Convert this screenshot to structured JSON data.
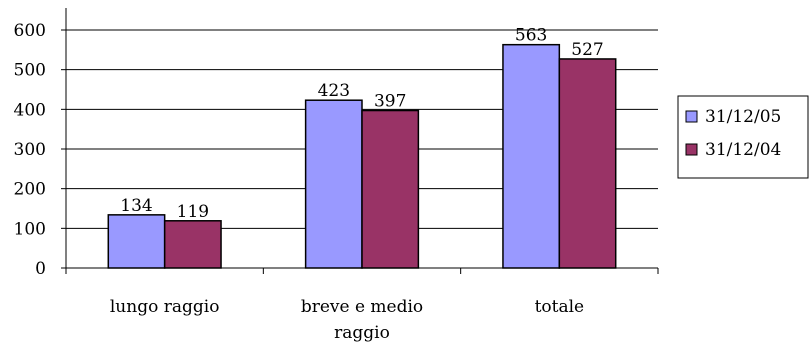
{
  "chart_data": {
    "type": "bar",
    "categories": [
      [
        "lungo raggio"
      ],
      [
        "breve e medio",
        "raggio"
      ],
      [
        "totale"
      ]
    ],
    "series": [
      {
        "name": "31/12/05",
        "values": [
          134,
          423,
          563
        ],
        "color": "#9999ff"
      },
      {
        "name": "31/12/04",
        "values": [
          119,
          397,
          527
        ],
        "color": "#993366"
      }
    ],
    "ylim": [
      0,
      600
    ],
    "yticks": [
      0,
      100,
      200,
      300,
      400,
      500,
      600
    ],
    "grid": true,
    "legend": "right"
  }
}
